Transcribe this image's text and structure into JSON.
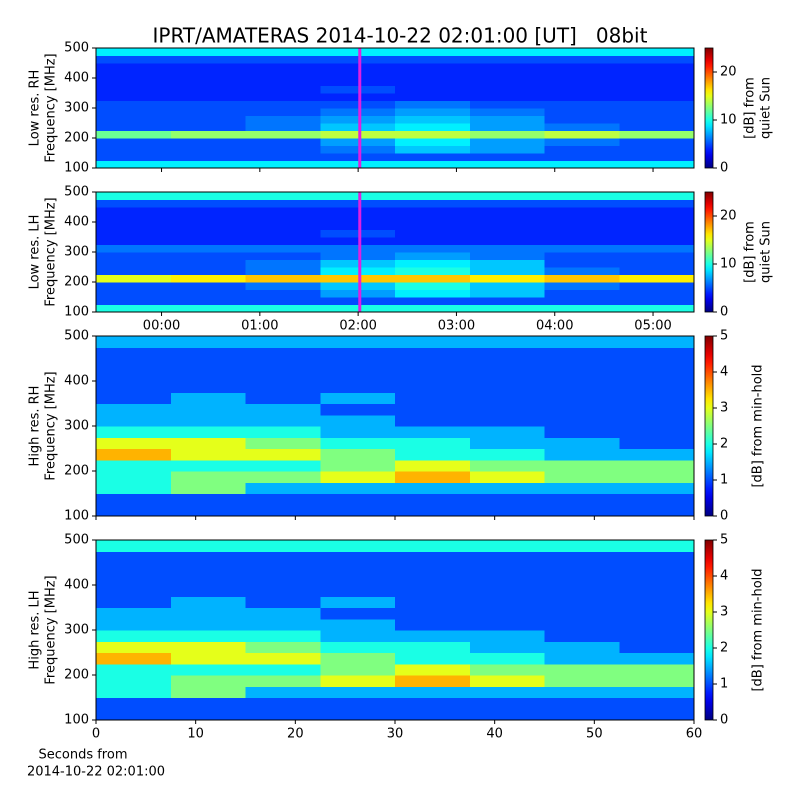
{
  "chart_data": [
    {
      "type": "heatmap",
      "title": "IPRT/AMATERAS 2014-10-22 02:01:00 [UT]   08bit",
      "ylabel": [
        "Low res. RH",
        "Frequency [MHz]"
      ],
      "colorbar_label": [
        "[dB] from",
        "quiet Sun"
      ],
      "xlim": [
        -40,
        325
      ],
      "xticks": [
        0,
        60,
        120,
        180,
        240,
        300
      ],
      "xtick_labels": false,
      "ylim": [
        100,
        500
      ],
      "yticks": [
        100,
        200,
        300,
        400,
        500
      ],
      "clim": [
        0,
        25
      ],
      "cticks": [
        0,
        10,
        20
      ],
      "colormap": "jet",
      "marker_x": 121,
      "marker_color": "#e020e0",
      "z": [
        [
          9,
          9,
          9,
          9,
          9,
          9,
          9,
          9
        ],
        [
          5,
          5,
          5,
          5,
          5,
          5,
          5,
          5
        ],
        [
          5,
          5,
          5,
          6,
          8,
          7,
          5,
          5
        ],
        [
          5,
          5,
          5,
          7,
          9,
          7,
          6,
          5
        ],
        [
          12,
          13,
          13,
          14,
          14,
          13,
          14,
          13
        ],
        [
          5,
          5,
          6,
          8,
          9,
          7,
          6,
          5
        ],
        [
          5,
          5,
          6,
          7,
          8,
          7,
          5,
          5
        ],
        [
          5,
          5,
          5,
          6,
          7,
          6,
          5,
          5
        ],
        [
          5,
          5,
          5,
          5,
          6,
          5,
          5,
          5
        ],
        [
          4,
          4,
          4,
          4,
          4,
          4,
          4,
          4
        ],
        [
          4,
          4,
          4,
          5,
          4,
          4,
          4,
          4
        ],
        [
          4,
          4,
          4,
          4,
          4,
          4,
          4,
          4
        ],
        [
          4,
          4,
          4,
          4,
          4,
          4,
          4,
          4
        ],
        [
          4,
          4,
          4,
          4,
          4,
          4,
          4,
          4
        ],
        [
          5,
          5,
          5,
          5,
          5,
          5,
          5,
          5
        ],
        [
          9,
          9,
          9,
          9,
          9,
          9,
          9,
          9
        ]
      ]
    },
    {
      "type": "heatmap",
      "ylabel": [
        "Low res. LH",
        "Frequency [MHz]"
      ],
      "colorbar_label": [
        "[dB] from",
        "quiet Sun"
      ],
      "xlim": [
        -40,
        325
      ],
      "xticks": [
        {
          "value": 0,
          "label": "00:00"
        },
        {
          "value": 60,
          "label": "01:00"
        },
        {
          "value": 120,
          "label": "02:00"
        },
        {
          "value": 180,
          "label": "03:00"
        },
        {
          "value": 240,
          "label": "04:00"
        },
        {
          "value": 300,
          "label": "05:00"
        }
      ],
      "ylim": [
        100,
        500
      ],
      "yticks": [
        100,
        200,
        300,
        400,
        500
      ],
      "clim": [
        0,
        25
      ],
      "cticks": [
        0,
        10,
        20
      ],
      "colormap": "jet",
      "marker_x": 121,
      "marker_color": "#e020e0",
      "z": [
        [
          10,
          10,
          10,
          10,
          10,
          10,
          10,
          10
        ],
        [
          5,
          5,
          5,
          5,
          5,
          5,
          5,
          5
        ],
        [
          5,
          5,
          5,
          7,
          9,
          8,
          5,
          5
        ],
        [
          5,
          5,
          6,
          8,
          10,
          8,
          6,
          5
        ],
        [
          15,
          16,
          17,
          17,
          17,
          16,
          17,
          16
        ],
        [
          5,
          5,
          6,
          9,
          10,
          8,
          6,
          5
        ],
        [
          5,
          5,
          6,
          8,
          9,
          8,
          5,
          5
        ],
        [
          5,
          5,
          5,
          6,
          7,
          6,
          5,
          5
        ],
        [
          6,
          6,
          6,
          6,
          6,
          6,
          6,
          6
        ],
        [
          4,
          4,
          4,
          4,
          4,
          4,
          4,
          4
        ],
        [
          4,
          4,
          4,
          5,
          4,
          4,
          4,
          4
        ],
        [
          4,
          4,
          4,
          4,
          4,
          4,
          4,
          4
        ],
        [
          4,
          4,
          4,
          4,
          4,
          4,
          4,
          4
        ],
        [
          4,
          4,
          4,
          4,
          4,
          4,
          4,
          4
        ],
        [
          5,
          5,
          5,
          5,
          5,
          5,
          5,
          5
        ],
        [
          10,
          10,
          10,
          10,
          10,
          10,
          10,
          10
        ]
      ]
    },
    {
      "type": "heatmap",
      "ylabel": [
        "High res. RH",
        "Frequency [MHz]"
      ],
      "colorbar_label": [
        "[dB] from min-hold"
      ],
      "xlim": [
        0,
        60
      ],
      "xticks": [
        0,
        10,
        20,
        30,
        40,
        50,
        60
      ],
      "xtick_labels": false,
      "ylim": [
        100,
        500
      ],
      "yticks": [
        100,
        200,
        300,
        400,
        500
      ],
      "clim": [
        0,
        5
      ],
      "cticks": [
        0,
        1,
        2,
        3,
        4,
        5
      ],
      "colormap": "jet",
      "z": [
        [
          1,
          1,
          1,
          1,
          1,
          1,
          1,
          1
        ],
        [
          1,
          1,
          1,
          1,
          1,
          1,
          1,
          1
        ],
        [
          2,
          2.5,
          1.5,
          1.5,
          1.5,
          1.5,
          1.5,
          1.5
        ],
        [
          2,
          2.5,
          2.5,
          3,
          3.5,
          3,
          2.5,
          2.5
        ],
        [
          2,
          2,
          2,
          2.5,
          3,
          2.5,
          2.5,
          2.5
        ],
        [
          3.5,
          3,
          3,
          2.5,
          2,
          2,
          1.5,
          1.5
        ],
        [
          3,
          3,
          2.5,
          2,
          2,
          1.5,
          1.5,
          1
        ],
        [
          2,
          2,
          2,
          1.5,
          1.5,
          1.5,
          1,
          1
        ],
        [
          1.5,
          1.5,
          1.5,
          1.5,
          1,
          1,
          1,
          1
        ],
        [
          1.5,
          1.5,
          1.5,
          1,
          1,
          1,
          1,
          1
        ],
        [
          1,
          1.5,
          1,
          1.5,
          1,
          1,
          1,
          1
        ],
        [
          1,
          1,
          1,
          1,
          1,
          1,
          1,
          1
        ],
        [
          1,
          1,
          1,
          1,
          1,
          1,
          1,
          1
        ],
        [
          1,
          1,
          1,
          1,
          1,
          1,
          1,
          1
        ],
        [
          1,
          1,
          1,
          1,
          1,
          1,
          1,
          1
        ],
        [
          1.5,
          1.5,
          1.5,
          1.5,
          1.5,
          1.5,
          1.5,
          1.5
        ]
      ]
    },
    {
      "type": "heatmap",
      "ylabel": [
        "High res. LH",
        "Frequency [MHz]"
      ],
      "colorbar_label": [
        "[dB] from min-hold"
      ],
      "xlabel": [
        "Seconds from",
        "2014-10-22 02:01:00"
      ],
      "xlim": [
        0,
        60
      ],
      "xticks": [
        0,
        10,
        20,
        30,
        40,
        50,
        60
      ],
      "ylim": [
        100,
        500
      ],
      "yticks": [
        100,
        200,
        300,
        400,
        500
      ],
      "clim": [
        0,
        5
      ],
      "cticks": [
        0,
        1,
        2,
        3,
        4,
        5
      ],
      "colormap": "jet",
      "z": [
        [
          1,
          1,
          1,
          1,
          1,
          1,
          1,
          1
        ],
        [
          1,
          1,
          1,
          1,
          1,
          1,
          1,
          1
        ],
        [
          2,
          2.5,
          1.5,
          1.5,
          1.5,
          1.5,
          1.5,
          1.5
        ],
        [
          2,
          2.5,
          2.5,
          3,
          3.5,
          3,
          2.5,
          2.5
        ],
        [
          2,
          2,
          2,
          2.5,
          3,
          2.5,
          2.5,
          2.5
        ],
        [
          3.5,
          3,
          3,
          2.5,
          2,
          2,
          1.5,
          1.5
        ],
        [
          3,
          3,
          2.5,
          2,
          2,
          1.5,
          1.5,
          1
        ],
        [
          2,
          2,
          2,
          1.5,
          1.5,
          1.5,
          1,
          1
        ],
        [
          1.5,
          1.5,
          1.5,
          1.5,
          1,
          1,
          1,
          1
        ],
        [
          1.5,
          1.5,
          1.5,
          1,
          1,
          1,
          1,
          1
        ],
        [
          1,
          1.5,
          1,
          1.5,
          1,
          1,
          1,
          1
        ],
        [
          1,
          1,
          1,
          1,
          1,
          1,
          1,
          1
        ],
        [
          1,
          1,
          1,
          1,
          1,
          1,
          1,
          1
        ],
        [
          1,
          1,
          1,
          1,
          1,
          1,
          1,
          1
        ],
        [
          1,
          1,
          1,
          1,
          1,
          1,
          1,
          1
        ],
        [
          2,
          2,
          2,
          2,
          2,
          2,
          2,
          2
        ]
      ]
    }
  ]
}
